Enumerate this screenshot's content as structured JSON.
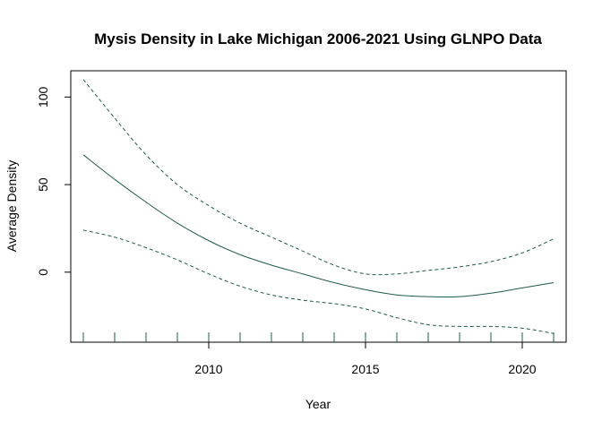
{
  "chart_data": {
    "type": "line",
    "title": "Mysis Density in Lake Michigan 2006-2021 Using GLNPO Data",
    "xlabel": "Year",
    "ylabel": "Average Density",
    "xlim": [
      2005.6,
      2021.4
    ],
    "ylim": [
      -40,
      115
    ],
    "xticks": [
      2010,
      2015,
      2020
    ],
    "yticks": [
      0,
      50,
      100
    ],
    "grid": false,
    "rug": [
      2006,
      2007,
      2008,
      2009,
      2010,
      2011,
      2012,
      2013,
      2014,
      2015,
      2016,
      2017,
      2018,
      2019,
      2020,
      2021
    ],
    "x": [
      2006,
      2007,
      2008,
      2009,
      2010,
      2011,
      2012,
      2013,
      2014,
      2015,
      2016,
      2017,
      2018,
      2019,
      2020,
      2021
    ],
    "series": [
      {
        "role": "fit",
        "style": "solid",
        "color": "#1f5a4d",
        "values": [
          67,
          53,
          40,
          28,
          18,
          10,
          4,
          -1,
          -6,
          -10,
          -13,
          -14,
          -14,
          -12,
          -9,
          -6
        ]
      },
      {
        "role": "upper",
        "style": "dashed",
        "color": "#1f5a4d",
        "values": [
          110,
          88,
          67,
          50,
          38,
          28,
          20,
          12,
          4,
          -1,
          -1,
          1,
          3,
          6,
          11,
          19
        ]
      },
      {
        "role": "lower",
        "style": "dashed",
        "color": "#1f5a4d",
        "values": [
          24,
          20,
          14,
          7,
          -1,
          -8,
          -13,
          -16,
          -18,
          -21,
          -26,
          -30,
          -31,
          -31,
          -32,
          -35
        ]
      }
    ]
  }
}
